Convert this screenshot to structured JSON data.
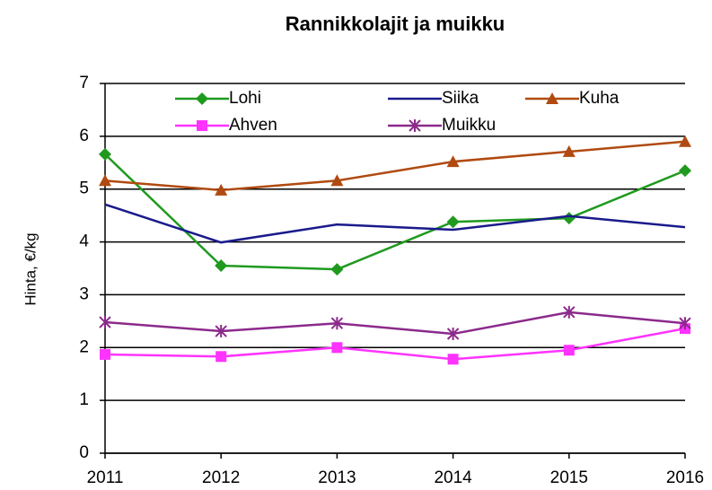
{
  "chart_data": {
    "type": "line",
    "title": "Rannikkolajit ja muikku",
    "y_label": "Hinta, €/kg",
    "x": [
      2011,
      2012,
      2013,
      2014,
      2015,
      2016
    ],
    "xlim": [
      2011,
      2016
    ],
    "xticks": [
      2011,
      2012,
      2013,
      2014,
      2015,
      2016
    ],
    "ylim": [
      0,
      7
    ],
    "yticks": [
      0,
      1,
      2,
      3,
      4,
      5,
      6,
      7
    ],
    "grid": true,
    "legend": "top",
    "series": [
      {
        "name": "Lohi",
        "color": "#1f9a1f",
        "marker": "diamond",
        "values": [
          5.66,
          3.55,
          3.48,
          4.38,
          4.45,
          5.35
        ]
      },
      {
        "name": "Siika",
        "color": "#1a1a8c",
        "marker": "none",
        "values": [
          4.71,
          3.99,
          4.33,
          4.23,
          4.49,
          4.28
        ]
      },
      {
        "name": "Kuha",
        "color": "#b04a10",
        "marker": "triangle",
        "values": [
          5.16,
          4.98,
          5.16,
          5.52,
          5.71,
          5.9
        ]
      },
      {
        "name": "Ahven",
        "color": "#ff33ff",
        "marker": "square",
        "values": [
          1.87,
          1.83,
          2.0,
          1.78,
          1.95,
          2.36
        ]
      },
      {
        "name": "Muikku",
        "color": "#8b2a8b",
        "marker": "star",
        "values": [
          2.48,
          2.31,
          2.46,
          2.26,
          2.67,
          2.46
        ]
      }
    ]
  }
}
